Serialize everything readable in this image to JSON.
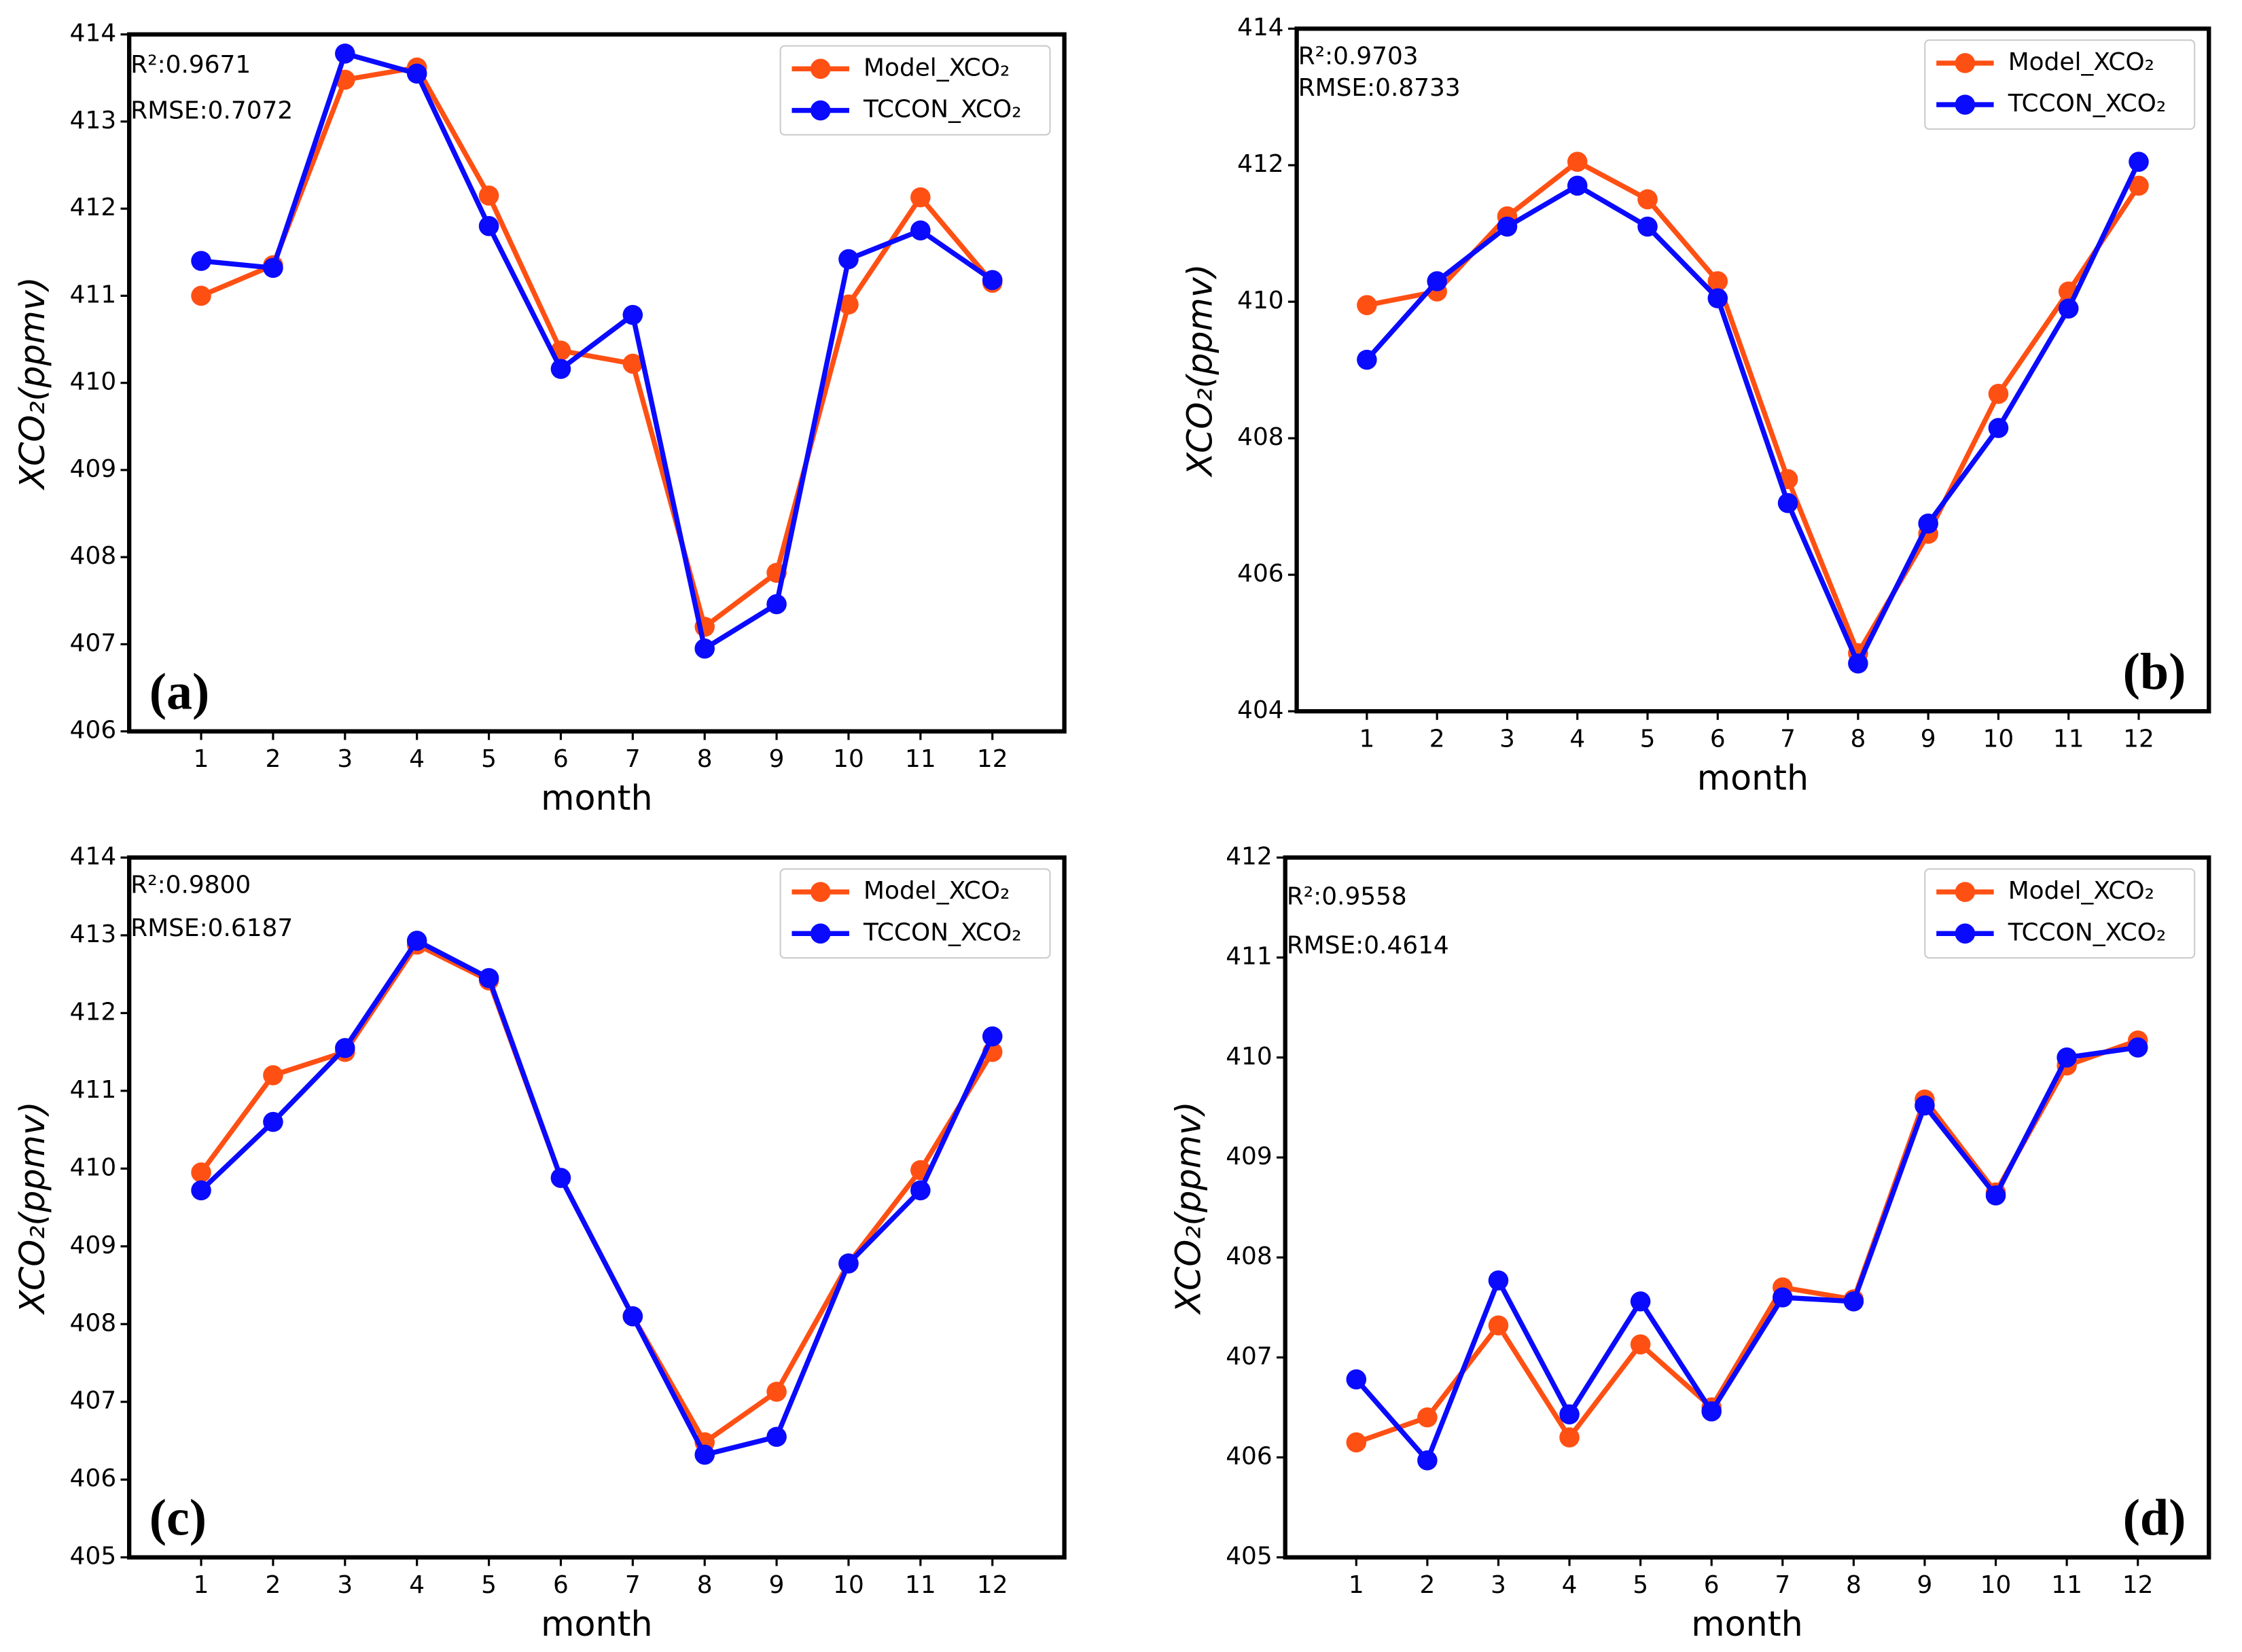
{
  "chart_data": [
    {
      "type": "line",
      "panel_label": "(a)",
      "r2_label": "R²:0.9671",
      "rmse_label": "RMSE:0.7072",
      "x_label": "month",
      "y_label": "XCO₂(ppmv)",
      "x": [
        1,
        2,
        3,
        4,
        5,
        6,
        7,
        8,
        9,
        10,
        11,
        12
      ],
      "xlim": [
        0,
        13
      ],
      "xticks": [
        1,
        2,
        3,
        4,
        5,
        6,
        7,
        8,
        9,
        10,
        11,
        12
      ],
      "ylim": [
        406,
        414
      ],
      "yticks": [
        406,
        407,
        408,
        409,
        410,
        411,
        412,
        413,
        414
      ],
      "legend": "upper right",
      "series": [
        {
          "name": "Model_XCO₂",
          "color": "#ff5014",
          "values": [
            411.0,
            411.35,
            413.48,
            413.62,
            412.15,
            410.37,
            410.22,
            407.2,
            407.82,
            410.9,
            412.13,
            411.15
          ]
        },
        {
          "name": "TCCON_XCO₂",
          "color": "#0a0aff",
          "values": [
            411.4,
            411.32,
            413.78,
            413.55,
            411.8,
            410.16,
            410.78,
            406.95,
            407.46,
            411.42,
            411.75,
            411.18
          ]
        }
      ]
    },
    {
      "type": "line",
      "panel_label": "(b)",
      "r2_label": "R²:0.9703",
      "rmse_label": "RMSE:0.8733",
      "x_label": "month",
      "y_label": "XCO₂(ppmv)",
      "x": [
        1,
        2,
        3,
        4,
        5,
        6,
        7,
        8,
        9,
        10,
        11,
        12
      ],
      "xlim": [
        0,
        13
      ],
      "xticks": [
        1,
        2,
        3,
        4,
        5,
        6,
        7,
        8,
        9,
        10,
        11,
        12
      ],
      "ylim": [
        404,
        414
      ],
      "yticks": [
        404,
        406,
        408,
        410,
        412,
        414
      ],
      "legend": "upper right",
      "series": [
        {
          "name": "Model_XCO₂",
          "color": "#ff5014",
          "values": [
            409.95,
            410.15,
            411.25,
            412.05,
            411.5,
            410.3,
            407.4,
            404.85,
            406.6,
            408.65,
            410.15,
            411.7
          ]
        },
        {
          "name": "TCCON_XCO₂",
          "color": "#0a0aff",
          "values": [
            409.15,
            410.3,
            411.1,
            411.7,
            411.1,
            410.05,
            407.05,
            404.7,
            406.75,
            408.15,
            409.9,
            412.05
          ]
        }
      ]
    },
    {
      "type": "line",
      "panel_label": "(c)",
      "r2_label": "R²:0.9800",
      "rmse_label": "RMSE:0.6187",
      "x_label": "month",
      "y_label": "XCO₂(ppmv)",
      "x": [
        1,
        2,
        3,
        4,
        5,
        6,
        7,
        8,
        9,
        10,
        11,
        12
      ],
      "xlim": [
        0,
        13
      ],
      "xticks": [
        1,
        2,
        3,
        4,
        5,
        6,
        7,
        8,
        9,
        10,
        11,
        12
      ],
      "ylim": [
        405,
        414
      ],
      "yticks": [
        405,
        406,
        407,
        408,
        409,
        410,
        411,
        412,
        413,
        414
      ],
      "legend": "upper right",
      "series": [
        {
          "name": "Model_XCO₂",
          "color": "#ff5014",
          "values": [
            409.95,
            411.2,
            411.5,
            412.88,
            412.42,
            409.88,
            408.1,
            406.48,
            407.13,
            408.78,
            409.98,
            411.5
          ]
        },
        {
          "name": "TCCON_XCO₂",
          "color": "#0a0aff",
          "values": [
            409.72,
            410.6,
            411.55,
            412.93,
            412.45,
            409.88,
            408.1,
            406.32,
            406.55,
            408.78,
            409.72,
            411.7
          ]
        }
      ]
    },
    {
      "type": "line",
      "panel_label": "(d)",
      "r2_label": "R²:0.9558",
      "rmse_label": "RMSE:0.4614",
      "x_label": "month",
      "y_label": "XCO₂(ppmv)",
      "x": [
        1,
        2,
        3,
        4,
        5,
        6,
        7,
        8,
        9,
        10,
        11,
        12
      ],
      "xlim": [
        0,
        13
      ],
      "xticks": [
        1,
        2,
        3,
        4,
        5,
        6,
        7,
        8,
        9,
        10,
        11,
        12
      ],
      "ylim": [
        405,
        412
      ],
      "yticks": [
        405,
        406,
        407,
        408,
        409,
        410,
        411,
        412
      ],
      "legend": "upper right",
      "series": [
        {
          "name": "Model_XCO₂",
          "color": "#ff5014",
          "values": [
            406.15,
            406.4,
            407.32,
            406.2,
            407.13,
            406.5,
            407.7,
            407.58,
            409.58,
            408.65,
            409.92,
            410.17
          ]
        },
        {
          "name": "TCCON_XCO₂",
          "color": "#0a0aff",
          "values": [
            406.78,
            405.97,
            407.77,
            406.43,
            407.56,
            406.46,
            407.6,
            407.56,
            409.52,
            408.62,
            410.0,
            410.1
          ]
        }
      ]
    }
  ]
}
